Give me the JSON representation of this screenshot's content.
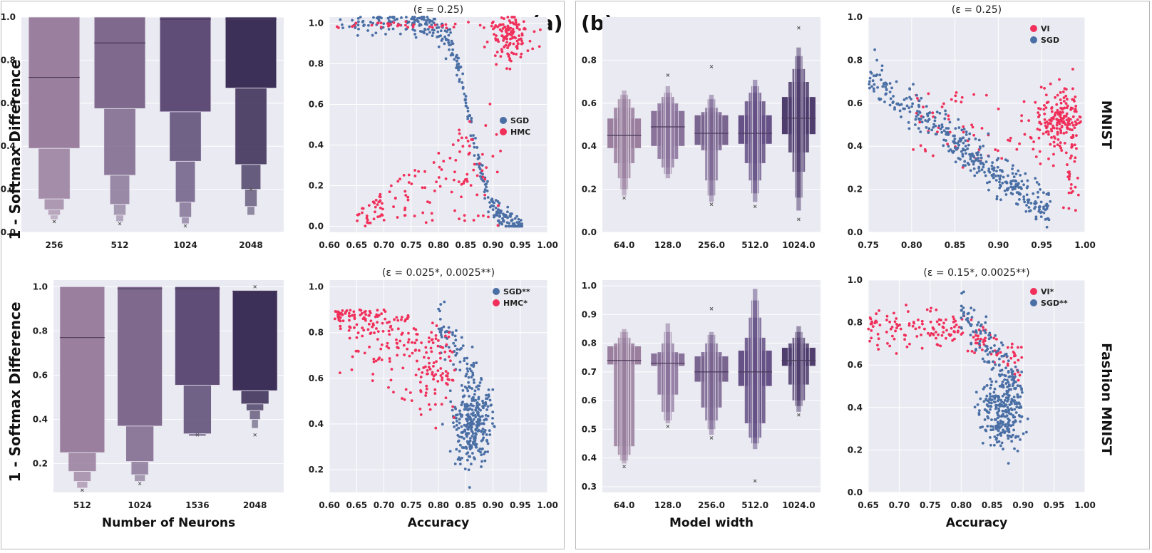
{
  "panel_labels": {
    "a": "(a)",
    "b": "(b)"
  },
  "row_labels": {
    "top": "MNIST",
    "bottom": "Fashion MNIST"
  },
  "chart_data": [
    {
      "id": "a_top_box",
      "type": "boxen",
      "panel": "a",
      "ylabel": "1 - Softmax Difference",
      "xlabel": "",
      "ylim": [
        0.0,
        1.0
      ],
      "yticks": [
        0.0,
        0.2,
        0.4,
        0.6,
        0.8,
        1.0
      ],
      "categories": [
        "256",
        "512",
        "1024",
        "2048"
      ],
      "colors": [
        "#9a7f9e",
        "#7f6a8e",
        "#5f4d78",
        "#3c2f58"
      ],
      "boxes": [
        {
          "median": 0.72,
          "levels": [
            [
              0.39,
              1.0
            ],
            [
              0.155,
              0.39
            ],
            [
              0.105,
              0.155
            ],
            [
              0.08,
              0.105
            ],
            [
              0.06,
              0.08
            ]
          ],
          "outliers": [
            0.05
          ]
        },
        {
          "median": 0.88,
          "levels": [
            [
              0.575,
              1.0
            ],
            [
              0.265,
              0.575
            ],
            [
              0.13,
              0.265
            ],
            [
              0.08,
              0.13
            ],
            [
              0.05,
              0.08
            ]
          ],
          "outliers": [
            0.04
          ]
        },
        {
          "median": 0.99,
          "levels": [
            [
              0.56,
              1.0
            ],
            [
              0.33,
              0.56
            ],
            [
              0.14,
              0.33
            ],
            [
              0.07,
              0.14
            ],
            [
              0.04,
              0.07
            ]
          ],
          "outliers": [
            0.03
          ]
        },
        {
          "median": 0.99,
          "levels": [
            [
              0.67,
              1.0
            ],
            [
              0.315,
              0.67
            ],
            [
              0.2,
              0.315
            ],
            [
              0.12,
              0.2
            ],
            [
              0.08,
              0.12
            ]
          ],
          "outliers": [
            0.2
          ]
        }
      ]
    },
    {
      "id": "a_top_scatter",
      "type": "scatter",
      "panel": "a",
      "title": "(ε = 0.25)",
      "xlabel": "",
      "xlim": [
        0.6,
        1.0
      ],
      "ylim": [
        -0.03,
        1.03
      ],
      "xticks": [
        0.6,
        0.65,
        0.7,
        0.75,
        0.8,
        0.85,
        0.9,
        0.95,
        1.0
      ],
      "yticks": [
        0.0,
        0.2,
        0.4,
        0.6,
        0.8,
        1.0
      ],
      "legend": {
        "position": "center-right",
        "entries": [
          "SGD",
          "HMC"
        ]
      },
      "series": [
        {
          "name": "SGD",
          "color": "#4a6fa5",
          "pattern": "sigmoid-down",
          "x_range": [
            0.6,
            0.955
          ],
          "center": 0.86,
          "count": 330
        },
        {
          "name": "HMC",
          "color": "#f0305a",
          "pattern": "spread-plus-cluster",
          "x_range": [
            0.61,
            0.96
          ],
          "cluster": [
            0.93,
            0.92
          ],
          "count": 300
        }
      ]
    },
    {
      "id": "a_bot_box",
      "type": "boxen",
      "panel": "a",
      "ylabel": "1 - Softmax Difference",
      "xlabel": "Number of Neurons",
      "ylim": [
        0.07,
        1.03
      ],
      "yticks": [
        0.2,
        0.4,
        0.6,
        0.8,
        1.0
      ],
      "categories": [
        "512",
        "1024",
        "1536",
        "2048"
      ],
      "colors": [
        "#9a7f9e",
        "#7f6a8e",
        "#5f4d78",
        "#3c2f58"
      ],
      "boxes": [
        {
          "median": 0.77,
          "levels": [
            [
              0.25,
              1.0
            ],
            [
              0.165,
              0.25
            ],
            [
              0.12,
              0.165
            ],
            [
              0.09,
              0.12
            ]
          ],
          "outliers": [
            0.08
          ]
        },
        {
          "median": 0.99,
          "levels": [
            [
              0.37,
              1.0
            ],
            [
              0.21,
              0.37
            ],
            [
              0.15,
              0.21
            ],
            [
              0.12,
              0.15
            ]
          ],
          "outliers": [
            0.11
          ]
        },
        {
          "median": 0.99,
          "levels": [
            [
              0.555,
              1.0
            ],
            [
              0.335,
              0.555
            ],
            [
              0.325,
              0.335
            ]
          ],
          "outliers": [
            0.33
          ]
        },
        {
          "median": 0.98,
          "levels": [
            [
              0.53,
              0.98
            ],
            [
              0.47,
              0.53
            ],
            [
              0.44,
              0.47
            ],
            [
              0.4,
              0.44
            ],
            [
              0.36,
              0.4
            ]
          ],
          "outliers": [
            0.33,
            1.0
          ]
        }
      ]
    },
    {
      "id": "a_bot_scatter",
      "type": "scatter",
      "panel": "a",
      "title": "(ε = 0.025*, 0.0025**)",
      "xlabel": "Accuracy",
      "xlim": [
        0.6,
        1.0
      ],
      "ylim": [
        0.1,
        1.03
      ],
      "xticks": [
        0.6,
        0.65,
        0.7,
        0.75,
        0.8,
        0.85,
        0.9,
        0.95,
        1.0
      ],
      "yticks": [
        0.2,
        0.4,
        0.6,
        0.8,
        1.0
      ],
      "legend": {
        "position": "top-right",
        "entries": [
          "SGD**",
          "HMC*"
        ]
      },
      "series": [
        {
          "name": "SGD**",
          "color": "#4a6fa5",
          "pattern": "cluster-tail",
          "x_range": [
            0.8,
            0.9
          ],
          "cluster": [
            0.86,
            0.38
          ],
          "count": 360
        },
        {
          "name": "HMC*",
          "color": "#f0305a",
          "pattern": "diagonal-cloud",
          "x_range": [
            0.61,
            0.83
          ],
          "count": 260
        }
      ]
    },
    {
      "id": "b_top_box",
      "type": "boxen",
      "panel": "b",
      "ylabel": "",
      "xlabel": "",
      "ylim": [
        0.0,
        1.0
      ],
      "yticks": [
        0.0,
        0.2,
        0.4,
        0.6,
        0.8
      ],
      "categories": [
        "64.0",
        "128.0",
        "256.0",
        "512.0",
        "1024.0"
      ],
      "colors": [
        "#9a7f9e",
        "#8a739b",
        "#7a6591",
        "#665286",
        "#4f3d6e"
      ],
      "boxes": [
        {
          "median": 0.45,
          "levels": [
            [
              0.39,
              0.53
            ],
            [
              0.32,
              0.58
            ],
            [
              0.25,
              0.62
            ],
            [
              0.2,
              0.64
            ],
            [
              0.17,
              0.66
            ]
          ],
          "outliers": [
            0.16
          ]
        },
        {
          "median": 0.49,
          "levels": [
            [
              0.4,
              0.565
            ],
            [
              0.34,
              0.6
            ],
            [
              0.3,
              0.63
            ],
            [
              0.27,
              0.65
            ],
            [
              0.25,
              0.68
            ]
          ],
          "outliers": [
            0.73
          ]
        },
        {
          "median": 0.46,
          "levels": [
            [
              0.405,
              0.545
            ],
            [
              0.38,
              0.56
            ],
            [
              0.24,
              0.58
            ],
            [
              0.17,
              0.62
            ],
            [
              0.14,
              0.64
            ]
          ],
          "outliers": [
            0.13,
            0.77
          ]
        },
        {
          "median": 0.46,
          "levels": [
            [
              0.41,
              0.545
            ],
            [
              0.32,
              0.61
            ],
            [
              0.24,
              0.65
            ],
            [
              0.18,
              0.68
            ],
            [
              0.14,
              0.71
            ]
          ],
          "outliers": [
            0.12
          ]
        },
        {
          "median": 0.53,
          "levels": [
            [
              0.455,
              0.63
            ],
            [
              0.37,
              0.7
            ],
            [
              0.28,
              0.76
            ],
            [
              0.16,
              0.82
            ],
            [
              0.1,
              0.86
            ]
          ],
          "outliers": [
            0.06,
            0.95
          ]
        }
      ]
    },
    {
      "id": "b_top_scatter",
      "type": "scatter",
      "panel": "b",
      "title": "(ε = 0.25)",
      "xlabel": "",
      "xlim": [
        0.75,
        1.0
      ],
      "ylim": [
        0.0,
        1.0
      ],
      "xticks": [
        0.75,
        0.8,
        0.85,
        0.9,
        0.95,
        1.0
      ],
      "yticks": [
        0.0,
        0.2,
        0.4,
        0.6,
        0.8,
        1.0
      ],
      "legend": {
        "position": "top-right",
        "entries": [
          "VI",
          "SGD"
        ]
      },
      "series": [
        {
          "name": "VI",
          "color": "#f0305a",
          "pattern": "right-cluster",
          "x_range": [
            0.79,
            0.99
          ],
          "cluster": [
            0.97,
            0.52
          ],
          "count": 280
        },
        {
          "name": "SGD",
          "color": "#4a6fa5",
          "pattern": "descending-band",
          "x_range": [
            0.75,
            0.96
          ],
          "count": 380
        }
      ]
    },
    {
      "id": "b_bot_box",
      "type": "boxen",
      "panel": "b",
      "ylabel": "",
      "xlabel": "Model width",
      "ylim": [
        0.28,
        1.02
      ],
      "yticks": [
        0.3,
        0.4,
        0.5,
        0.6,
        0.7,
        0.8,
        0.9,
        1.0
      ],
      "categories": [
        "64.0",
        "128.0",
        "256.0",
        "512.0",
        "1024.0"
      ],
      "colors": [
        "#9a7f9e",
        "#8a739b",
        "#7a6591",
        "#665286",
        "#4f3d6e"
      ],
      "boxes": [
        {
          "median": 0.74,
          "levels": [
            [
              0.725,
              0.79
            ],
            [
              0.44,
              0.8
            ],
            [
              0.41,
              0.82
            ],
            [
              0.39,
              0.84
            ],
            [
              0.38,
              0.85
            ]
          ],
          "outliers": [
            0.37
          ]
        },
        {
          "median": 0.73,
          "levels": [
            [
              0.72,
              0.765
            ],
            [
              0.62,
              0.77
            ],
            [
              0.56,
              0.8
            ],
            [
              0.53,
              0.84
            ],
            [
              0.52,
              0.87
            ]
          ],
          "outliers": [
            0.51
          ]
        },
        {
          "median": 0.7,
          "levels": [
            [
              0.665,
              0.755
            ],
            [
              0.575,
              0.77
            ],
            [
              0.53,
              0.8
            ],
            [
              0.5,
              0.83
            ],
            [
              0.48,
              0.84
            ]
          ],
          "outliers": [
            0.47,
            0.92
          ]
        },
        {
          "median": 0.7,
          "levels": [
            [
              0.65,
              0.775
            ],
            [
              0.52,
              0.82
            ],
            [
              0.47,
              0.89
            ],
            [
              0.45,
              0.95
            ],
            [
              0.43,
              0.99
            ]
          ],
          "outliers": [
            0.32
          ]
        },
        {
          "median": 0.74,
          "levels": [
            [
              0.72,
              0.785
            ],
            [
              0.655,
              0.8
            ],
            [
              0.6,
              0.82
            ],
            [
              0.58,
              0.84
            ],
            [
              0.56,
              0.86
            ]
          ],
          "outliers": [
            0.55
          ]
        }
      ]
    },
    {
      "id": "b_bot_scatter",
      "type": "scatter",
      "panel": "b",
      "title": "(ε = 0.15*, 0.0025**)",
      "xlabel": "Accuracy",
      "xlim": [
        0.65,
        1.0
      ],
      "ylim": [
        0.0,
        1.0
      ],
      "xticks": [
        0.65,
        0.7,
        0.75,
        0.8,
        0.85,
        0.9,
        0.95,
        1.0
      ],
      "yticks": [
        0.0,
        0.2,
        0.4,
        0.6,
        0.8,
        1.0
      ],
      "legend": {
        "position": "top-right",
        "entries": [
          "VI*",
          "SGD**"
        ]
      },
      "series": [
        {
          "name": "VI*",
          "color": "#f0305a",
          "pattern": "upper-band",
          "x_range": [
            0.65,
            0.9
          ],
          "count": 170
        },
        {
          "name": "SGD**",
          "color": "#4a6fa5",
          "pattern": "cluster-tail",
          "x_range": [
            0.8,
            0.9
          ],
          "cluster": [
            0.865,
            0.38
          ],
          "count": 380
        }
      ]
    }
  ]
}
